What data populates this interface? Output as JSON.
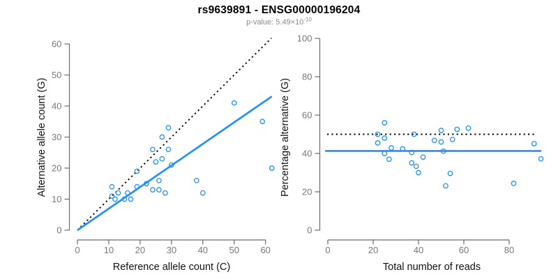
{
  "header": {
    "title": "rs9639891 - ENSG00000196204",
    "p_value_text": "p-value: 5.49×10",
    "p_value_exponent": "-10"
  },
  "colors": {
    "accent_blue": "#1E90FF",
    "identity_line_black": "#000000",
    "axis_line": "#6b6b6b",
    "tick_label_gray": "#787878",
    "axis_title_color": "#111111",
    "subtitle_gray": "#8a8a8a"
  },
  "chart_data": [
    {
      "type": "scatter",
      "title": "",
      "xlabel": "Reference allele count (C)",
      "ylabel": "Alternative allele count (G)",
      "xlim": [
        0,
        62
      ],
      "ylim": [
        0,
        62
      ],
      "xticks": [
        0,
        10,
        20,
        30,
        40,
        50,
        60
      ],
      "yticks": [
        0,
        10,
        20,
        30,
        40,
        50,
        60
      ],
      "grid": false,
      "legend": "none",
      "points": [
        [
          11,
          14
        ],
        [
          11,
          11
        ],
        [
          12,
          10
        ],
        [
          13,
          12
        ],
        [
          15,
          10
        ],
        [
          16,
          12
        ],
        [
          17,
          10
        ],
        [
          19,
          14
        ],
        [
          19,
          19
        ],
        [
          22,
          15
        ],
        [
          24,
          13
        ],
        [
          24,
          26
        ],
        [
          25,
          22
        ],
        [
          26,
          13
        ],
        [
          26,
          16
        ],
        [
          27,
          23
        ],
        [
          27,
          30
        ],
        [
          28,
          12
        ],
        [
          29,
          26
        ],
        [
          29,
          33
        ],
        [
          30,
          21
        ],
        [
          38,
          16
        ],
        [
          40,
          12
        ],
        [
          50,
          41
        ],
        [
          59,
          35
        ],
        [
          62,
          20
        ]
      ],
      "identity_line": {
        "style": "dotted",
        "slope": 1,
        "intercept": 0
      },
      "fit_line": {
        "style": "solid",
        "slope": 0.695,
        "intercept": 0
      }
    },
    {
      "type": "scatter",
      "title": "",
      "xlabel": "Total number of reads",
      "ylabel": "Percentage alternative (G)",
      "xlim": [
        0,
        94
      ],
      "ylim": [
        0,
        100
      ],
      "xticks": [
        0,
        20,
        40,
        60,
        80
      ],
      "yticks": [
        0,
        20,
        40,
        60,
        80,
        100
      ],
      "grid": false,
      "legend": "none",
      "points": [
        [
          25,
          56
        ],
        [
          22,
          50
        ],
        [
          22,
          45.5
        ],
        [
          25,
          48
        ],
        [
          25,
          40
        ],
        [
          28,
          42.9
        ],
        [
          27,
          37
        ],
        [
          33,
          42.4
        ],
        [
          38,
          50
        ],
        [
          37,
          40.5
        ],
        [
          37,
          35.1
        ],
        [
          50,
          52
        ],
        [
          47,
          46.8
        ],
        [
          39,
          33.3
        ],
        [
          42,
          38.1
        ],
        [
          50,
          46
        ],
        [
          57,
          52.6
        ],
        [
          40,
          30
        ],
        [
          55,
          47.3
        ],
        [
          62,
          53.2
        ],
        [
          51,
          41.2
        ],
        [
          54,
          29.6
        ],
        [
          52,
          23.1
        ],
        [
          91,
          45.1
        ],
        [
          94,
          37.2
        ],
        [
          82,
          24.4
        ]
      ],
      "reference_hline": {
        "style": "dotted",
        "y": 50
      },
      "mean_hline": {
        "style": "solid",
        "y": 41.3
      }
    }
  ]
}
